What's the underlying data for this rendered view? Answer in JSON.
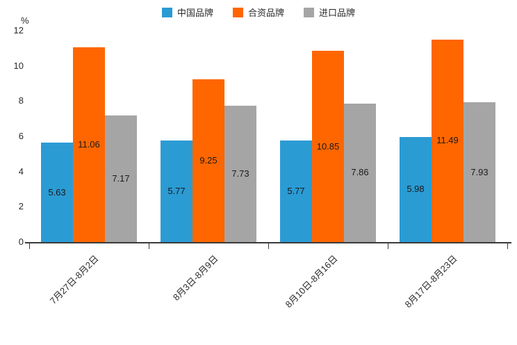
{
  "chart_data": {
    "type": "bar",
    "title": "",
    "unit_label": "%",
    "categories": [
      "7月27日-8月2日",
      "8月3日-8月9日",
      "8月10日-8月16日",
      "8月17日-8月23日"
    ],
    "series": [
      {
        "name": "中国品牌",
        "color": "#2b9bd4",
        "values": [
          5.63,
          5.77,
          5.77,
          5.98
        ]
      },
      {
        "name": "合资品牌",
        "color": "#ff6600",
        "values": [
          11.06,
          9.25,
          10.85,
          11.49
        ]
      },
      {
        "name": "进口品牌",
        "color": "#a5a5a5",
        "values": [
          7.17,
          7.73,
          7.86,
          7.93
        ]
      }
    ],
    "ylim": [
      0,
      12
    ],
    "ytick_step": 2,
    "ytick_labels": [
      "0",
      "2",
      "4",
      "6",
      "8",
      "10",
      "12"
    ],
    "legend_position": "top",
    "grid": false,
    "data_labels": "inside-center",
    "xlabel_rotation_deg": 45
  }
}
